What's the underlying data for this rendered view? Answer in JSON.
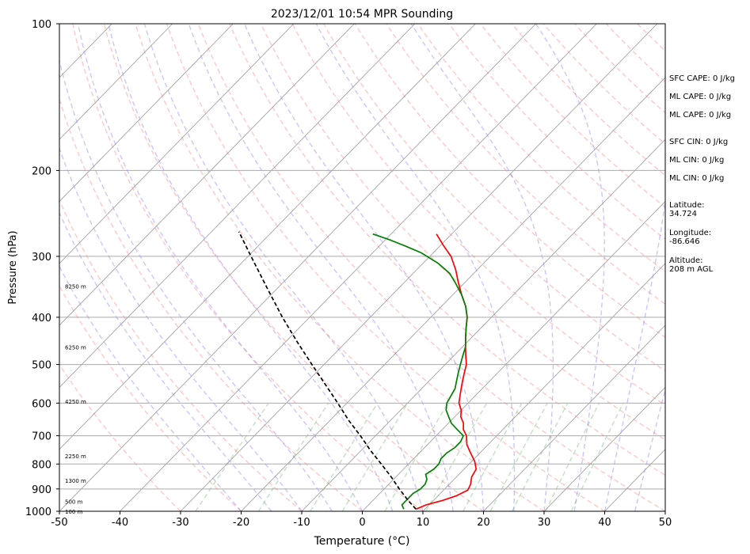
{
  "chart_data": {
    "type": "line",
    "title": "2023/12/01 10:54 MPR Sounding",
    "xlabel": "Temperature (°C)",
    "ylabel": "Pressure (hPa)",
    "xlim": [
      -50,
      50
    ],
    "ylim": [
      1000,
      100
    ],
    "y_scale": "log",
    "grid": true,
    "x_ticks": [
      -50,
      -40,
      -30,
      -20,
      -10,
      0,
      10,
      20,
      30,
      40,
      50
    ],
    "y_ticks": [
      1000,
      900,
      800,
      700,
      600,
      500,
      400,
      300,
      200,
      100
    ],
    "height_labels": [
      {
        "text": "100 m",
        "p": 1000
      },
      {
        "text": "500 m",
        "p": 955
      },
      {
        "text": "1300 m",
        "p": 865
      },
      {
        "text": "2250 m",
        "p": 770
      },
      {
        "text": "4250 m",
        "p": 595
      },
      {
        "text": "6250 m",
        "p": 460
      },
      {
        "text": "8250 m",
        "p": 345
      }
    ],
    "series": [
      {
        "role": "temperature",
        "color": "#ff0000",
        "points": [
          {
            "p": 990,
            "t": 8.5
          },
          {
            "p": 970,
            "t": 9.5
          },
          {
            "p": 950,
            "t": 11.5
          },
          {
            "p": 930,
            "t": 13.0
          },
          {
            "p": 905,
            "t": 14.0
          },
          {
            "p": 880,
            "t": 13.5
          },
          {
            "p": 850,
            "t": 12.5
          },
          {
            "p": 820,
            "t": 12.0
          },
          {
            "p": 790,
            "t": 10.5
          },
          {
            "p": 760,
            "t": 8.5
          },
          {
            "p": 730,
            "t": 6.5
          },
          {
            "p": 700,
            "t": 5.0
          },
          {
            "p": 680,
            "t": 3.5
          },
          {
            "p": 660,
            "t": 2.5
          },
          {
            "p": 640,
            "t": 1.0
          },
          {
            "p": 620,
            "t": 0.0
          },
          {
            "p": 600,
            "t": -1.5
          },
          {
            "p": 580,
            "t": -2.5
          },
          {
            "p": 560,
            "t": -3.5
          },
          {
            "p": 540,
            "t": -4.5
          },
          {
            "p": 520,
            "t": -5.5
          },
          {
            "p": 500,
            "t": -6.5
          },
          {
            "p": 480,
            "t": -8.0
          },
          {
            "p": 460,
            "t": -9.5
          },
          {
            "p": 440,
            "t": -11.0
          },
          {
            "p": 420,
            "t": -12.5
          },
          {
            "p": 400,
            "t": -14.0
          },
          {
            "p": 380,
            "t": -16.0
          },
          {
            "p": 360,
            "t": -18.5
          },
          {
            "p": 340,
            "t": -21.0
          },
          {
            "p": 320,
            "t": -23.5
          },
          {
            "p": 300,
            "t": -26.5
          },
          {
            "p": 285,
            "t": -29.5
          },
          {
            "p": 270,
            "t": -32.5
          }
        ]
      },
      {
        "role": "dewpoint",
        "color": "#008000",
        "points": [
          {
            "p": 990,
            "t": 6.5
          },
          {
            "p": 970,
            "t": 5.5
          },
          {
            "p": 950,
            "t": 5.5
          },
          {
            "p": 920,
            "t": 5.5
          },
          {
            "p": 900,
            "t": 6.0
          },
          {
            "p": 880,
            "t": 6.0
          },
          {
            "p": 860,
            "t": 5.5
          },
          {
            "p": 840,
            "t": 4.5
          },
          {
            "p": 820,
            "t": 5.0
          },
          {
            "p": 800,
            "t": 5.0
          },
          {
            "p": 780,
            "t": 4.5
          },
          {
            "p": 760,
            "t": 4.5
          },
          {
            "p": 740,
            "t": 5.0
          },
          {
            "p": 720,
            "t": 5.0
          },
          {
            "p": 700,
            "t": 4.5
          },
          {
            "p": 680,
            "t": 2.5
          },
          {
            "p": 660,
            "t": 0.5
          },
          {
            "p": 640,
            "t": -1.0
          },
          {
            "p": 620,
            "t": -2.5
          },
          {
            "p": 600,
            "t": -3.5
          },
          {
            "p": 580,
            "t": -4.0
          },
          {
            "p": 560,
            "t": -4.5
          },
          {
            "p": 540,
            "t": -5.5
          },
          {
            "p": 520,
            "t": -6.5
          },
          {
            "p": 500,
            "t": -7.5
          },
          {
            "p": 480,
            "t": -8.5
          },
          {
            "p": 460,
            "t": -9.5
          },
          {
            "p": 440,
            "t": -11.0
          },
          {
            "p": 420,
            "t": -12.5
          },
          {
            "p": 400,
            "t": -14.0
          },
          {
            "p": 380,
            "t": -16.0
          },
          {
            "p": 360,
            "t": -18.5
          },
          {
            "p": 340,
            "t": -21.5
          },
          {
            "p": 325,
            "t": -24.0
          },
          {
            "p": 310,
            "t": -27.5
          },
          {
            "p": 295,
            "t": -32.0
          },
          {
            "p": 285,
            "t": -36.0
          },
          {
            "p": 277,
            "t": -39.5
          },
          {
            "p": 270,
            "t": -43.0
          }
        ]
      },
      {
        "role": "parcel",
        "color": "#000000",
        "dashed": true,
        "points": [
          {
            "p": 990,
            "t": 8.5
          },
          {
            "p": 950,
            "t": 5.8
          },
          {
            "p": 900,
            "t": 2.5
          },
          {
            "p": 850,
            "t": -0.8
          },
          {
            "p": 800,
            "t": -4.5
          },
          {
            "p": 750,
            "t": -8.5
          },
          {
            "p": 700,
            "t": -12.5
          },
          {
            "p": 650,
            "t": -17.0
          },
          {
            "p": 600,
            "t": -21.5
          },
          {
            "p": 550,
            "t": -26.5
          },
          {
            "p": 500,
            "t": -32.0
          },
          {
            "p": 450,
            "t": -38.0
          },
          {
            "p": 400,
            "t": -44.5
          },
          {
            "p": 350,
            "t": -51.5
          },
          {
            "p": 300,
            "t": -59.5
          },
          {
            "p": 267,
            "t": -65.5
          }
        ]
      }
    ]
  },
  "side_panel": {
    "sfc_cape": "SFC CAPE: 0 J/kg",
    "ml_cape_1": "ML CAPE: 0 J/kg",
    "ml_cape_2": "ML CAPE: 0 J/kg",
    "sfc_cin": "SFC CIN: 0 J/kg",
    "ml_cin_1": "ML CIN: 0 J/kg",
    "ml_cin_2": "ML CIN: 0 J/kg",
    "latitude": "Latitude:\n34.724",
    "longitude": "Longitude:\n-86.646",
    "altitude": "Altitude:\n208 m AGL"
  }
}
